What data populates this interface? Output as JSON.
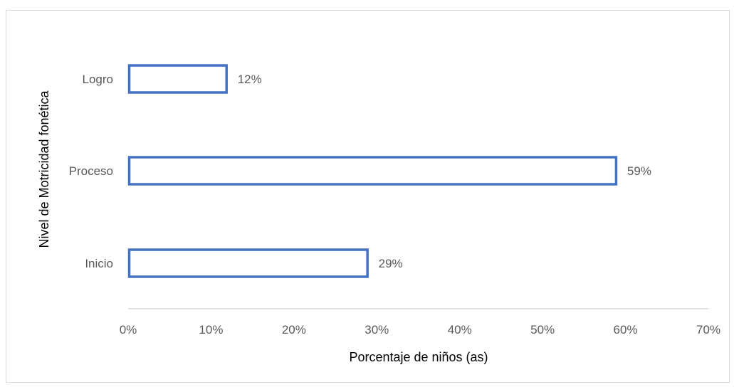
{
  "chart_data": {
    "type": "bar",
    "orientation": "horizontal",
    "categories": [
      "Logro",
      "Proceso",
      "Inicio"
    ],
    "values": [
      12,
      59,
      29
    ],
    "data_labels": [
      "12%",
      "59%",
      "29%"
    ],
    "xlabel": "Porcentaje de niños (as)",
    "ylabel": "Nivel de Motricidad fonética",
    "xlim": [
      0,
      70
    ],
    "xticks": [
      0,
      10,
      20,
      30,
      40,
      50,
      60,
      70
    ],
    "xtick_labels": [
      "0%",
      "10%",
      "20%",
      "30%",
      "40%",
      "50%",
      "60%",
      "70%"
    ],
    "grid": false,
    "bar_style": "outline",
    "bar_color": "#4472C4"
  }
}
